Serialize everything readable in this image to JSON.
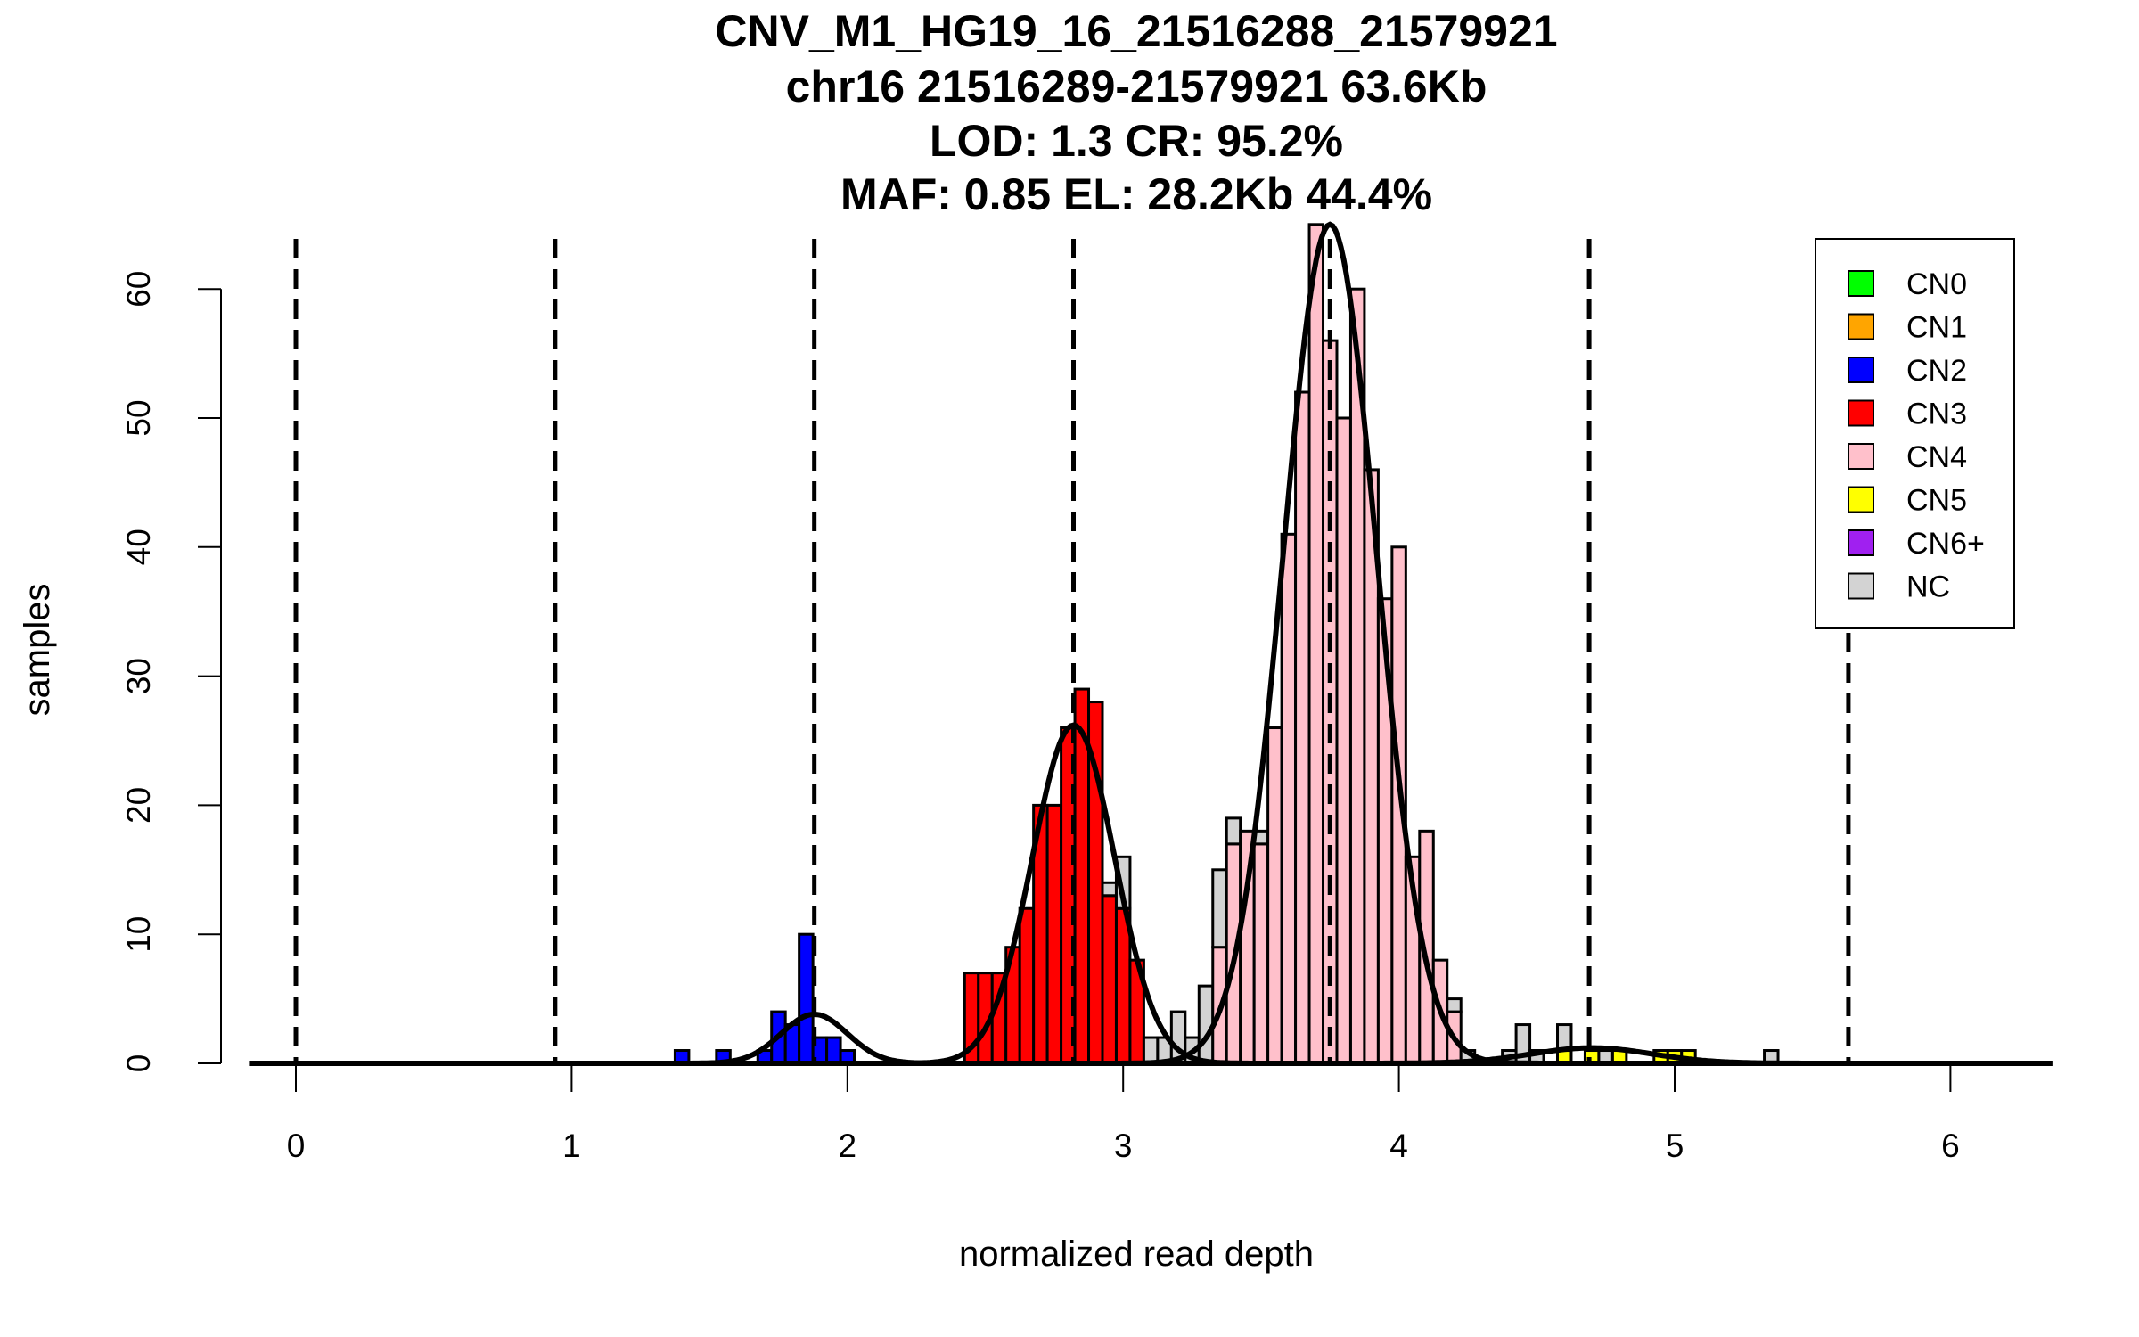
{
  "chart_data": {
    "type": "bar",
    "title_lines": [
      "CNV_M1_HG19_16_21516288_21579921",
      "chr16 21516289-21579921 63.6Kb",
      "LOD: 1.3 CR: 95.2%",
      "MAF: 0.85 EL: 28.2Kb 44.4%"
    ],
    "xlabel": "normalized read depth",
    "ylabel": "samples",
    "xlim": [
      -0.17,
      6.37
    ],
    "ylim": [
      0,
      65.2
    ],
    "xticks": [
      "0",
      "1",
      "2",
      "3",
      "4",
      "5",
      "6"
    ],
    "yticks": [
      "0",
      "10",
      "20",
      "30",
      "40",
      "50",
      "60"
    ],
    "bin_width": 0.05,
    "classes": [
      "CN0",
      "CN1",
      "CN2",
      "CN3",
      "CN4",
      "CN5",
      "CN6+",
      "NC"
    ],
    "colors": {
      "CN0": "#00ff00",
      "CN1": "#ffa500",
      "CN2": "#0000ff",
      "CN3": "#ff0000",
      "CN4": "#ffc0cb",
      "CN5": "#ffff00",
      "CN6+": "#a020f0",
      "NC": "#d3d3d3"
    },
    "bins": [
      {
        "start": 1.375,
        "CN2": 1
      },
      {
        "start": 1.525,
        "CN2": 1
      },
      {
        "start": 1.675,
        "CN2": 1
      },
      {
        "start": 1.725,
        "CN2": 4
      },
      {
        "start": 1.775,
        "CN2": 3
      },
      {
        "start": 1.825,
        "CN2": 10
      },
      {
        "start": 1.875,
        "CN2": 2
      },
      {
        "start": 1.925,
        "CN2": 2
      },
      {
        "start": 1.975,
        "CN2": 1
      },
      {
        "start": 2.425,
        "CN3": 7
      },
      {
        "start": 2.475,
        "CN3": 7
      },
      {
        "start": 2.525,
        "CN3": 7
      },
      {
        "start": 2.575,
        "CN3": 9
      },
      {
        "start": 2.625,
        "CN3": 12
      },
      {
        "start": 2.675,
        "CN3": 20
      },
      {
        "start": 2.725,
        "CN3": 20
      },
      {
        "start": 2.775,
        "CN3": 26
      },
      {
        "start": 2.825,
        "CN3": 29
      },
      {
        "start": 2.875,
        "CN3": 28
      },
      {
        "start": 2.925,
        "CN3": 13,
        "NC": 1
      },
      {
        "start": 2.975,
        "CN3": 12,
        "NC": 4
      },
      {
        "start": 3.025,
        "CN3": 8
      },
      {
        "start": 3.075,
        "NC": 2
      },
      {
        "start": 3.125,
        "NC": 2
      },
      {
        "start": 3.175,
        "NC": 4
      },
      {
        "start": 3.225,
        "NC": 2
      },
      {
        "start": 3.275,
        "NC": 6
      },
      {
        "start": 3.325,
        "CN4": 9,
        "NC": 6
      },
      {
        "start": 3.375,
        "CN4": 17,
        "NC": 2
      },
      {
        "start": 3.425,
        "CN4": 18
      },
      {
        "start": 3.475,
        "CN4": 17,
        "NC": 1
      },
      {
        "start": 3.525,
        "CN4": 26
      },
      {
        "start": 3.575,
        "CN4": 41
      },
      {
        "start": 3.625,
        "CN4": 52
      },
      {
        "start": 3.675,
        "CN4": 65
      },
      {
        "start": 3.725,
        "CN4": 56
      },
      {
        "start": 3.775,
        "CN4": 50
      },
      {
        "start": 3.825,
        "CN4": 60
      },
      {
        "start": 3.875,
        "CN4": 46
      },
      {
        "start": 3.925,
        "CN4": 36
      },
      {
        "start": 3.975,
        "CN4": 40
      },
      {
        "start": 4.025,
        "CN4": 16
      },
      {
        "start": 4.075,
        "CN4": 18
      },
      {
        "start": 4.125,
        "CN4": 8
      },
      {
        "start": 4.175,
        "CN4": 4,
        "NC": 1
      },
      {
        "start": 4.225,
        "NC": 1
      },
      {
        "start": 4.375,
        "NC": 1
      },
      {
        "start": 4.425,
        "NC": 3
      },
      {
        "start": 4.475,
        "NC": 1
      },
      {
        "start": 4.575,
        "CN5": 1,
        "NC": 2
      },
      {
        "start": 4.675,
        "CN5": 1
      },
      {
        "start": 4.725,
        "NC": 1
      },
      {
        "start": 4.775,
        "CN5": 1
      },
      {
        "start": 4.925,
        "CN5": 1
      },
      {
        "start": 4.975,
        "CN5": 1
      },
      {
        "start": 5.025,
        "CN5": 1
      },
      {
        "start": 5.325,
        "NC": 1
      }
    ],
    "cn_means": [
      0,
      0.94,
      1.88,
      2.82,
      3.75,
      4.69,
      5.63
    ],
    "fitted_curves": [
      {
        "class": "CN2",
        "mean": 1.88,
        "sd": 0.12,
        "peak": 3.8
      },
      {
        "class": "CN3",
        "mean": 2.82,
        "sd": 0.15,
        "peak": 26.2
      },
      {
        "class": "CN4",
        "mean": 3.75,
        "sd": 0.17,
        "peak": 65
      },
      {
        "class": "CN5",
        "mean": 4.7,
        "sd": 0.22,
        "peak": 1.2
      }
    ],
    "legend": {
      "position": "top-right",
      "entries": [
        "CN0",
        "CN1",
        "CN2",
        "CN3",
        "CN4",
        "CN5",
        "CN6+",
        "NC"
      ]
    }
  }
}
